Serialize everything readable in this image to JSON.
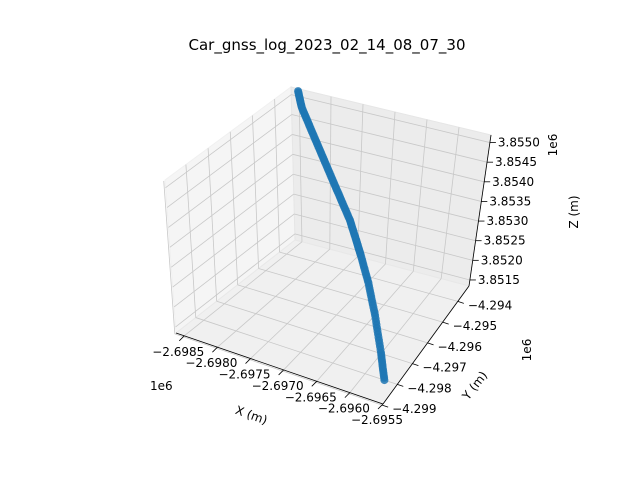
{
  "chart_data": {
    "type": "scatter",
    "projection": "3d",
    "title": "Car_gnss_log_2023_02_14_08_07_30",
    "xlabel": "X (m)",
    "ylabel": "Y (m)",
    "zlabel": "Z (m)",
    "x_offset": "1e6",
    "y_offset": "1e6",
    "z_offset": "1e6",
    "x_ticks": [
      "−2.6985",
      "−2.6980",
      "−2.6975",
      "−2.6970",
      "−2.6965",
      "−2.6960",
      "−2.6955"
    ],
    "y_ticks": [
      "−4.294",
      "−4.295",
      "−4.296",
      "−4.297",
      "−4.298",
      "−4.299"
    ],
    "z_ticks": [
      "3.8550",
      "3.8545",
      "3.8540",
      "3.8535",
      "3.8530",
      "3.8525",
      "3.8520",
      "3.8515"
    ],
    "grid": true,
    "marker_color": "#1f77b4",
    "pane_color": "#f2f2f2",
    "series": [
      {
        "points": [
          [
            -2.6957,
            -4.298,
            3.8515
          ],
          [
            -2.6959,
            -4.2974,
            3.85175
          ],
          [
            -2.6962,
            -4.2966,
            3.8521
          ],
          [
            -2.6965,
            -4.2959,
            3.8524
          ],
          [
            -2.6968,
            -4.2953,
            3.85265
          ],
          [
            -2.697,
            -4.2949,
            3.85275
          ],
          [
            -2.6972,
            -4.2946,
            3.853
          ],
          [
            -2.6974,
            -4.2945,
            3.8534
          ],
          [
            -2.6976,
            -4.2944,
            3.8538
          ],
          [
            -2.6978,
            -4.2943,
            3.8542
          ],
          [
            -2.698,
            -4.2942,
            3.8546
          ],
          [
            -2.6982,
            -4.2941,
            3.855
          ],
          [
            -2.6983,
            -4.294,
            3.8553
          ]
        ]
      }
    ]
  }
}
